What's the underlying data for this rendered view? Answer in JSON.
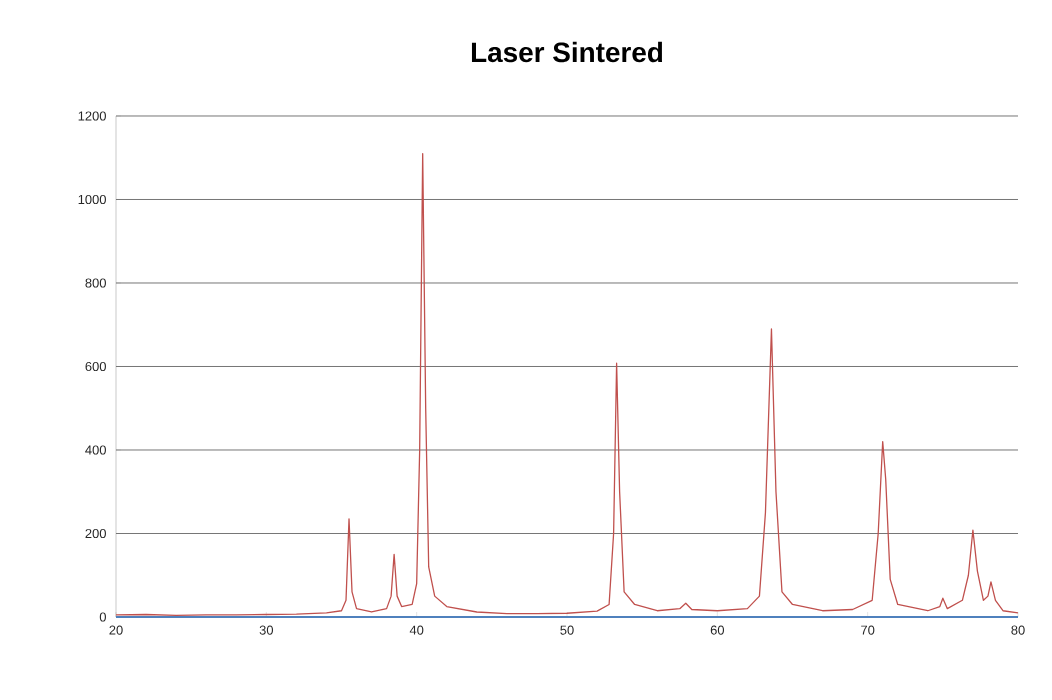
{
  "chart_data": {
    "type": "line",
    "title": "Laser Sintered",
    "series": [
      {
        "color": "#c0504d",
        "x": [
          20,
          22,
          24,
          26,
          28,
          30,
          32,
          34,
          35,
          35.3,
          35.5,
          35.7,
          36,
          37,
          38,
          38.3,
          38.5,
          38.7,
          39,
          39.7,
          40.0,
          40.2,
          40.4,
          40.6,
          40.8,
          41.2,
          42,
          44,
          46,
          48,
          50,
          52,
          52.8,
          53.1,
          53.3,
          53.5,
          53.8,
          54.5,
          56,
          57.5,
          57.9,
          58.3,
          60,
          62,
          62.8,
          63.2,
          63.6,
          63.9,
          64.3,
          65,
          67,
          69,
          70.3,
          70.7,
          71.0,
          71.2,
          71.5,
          72,
          74,
          74.8,
          75.0,
          75.3,
          76.3,
          76.7,
          77.0,
          77.3,
          77.7,
          78.0,
          78.2,
          78.5,
          79,
          80
        ],
        "values": [
          5,
          6,
          4,
          5,
          5,
          6,
          7,
          10,
          15,
          40,
          235,
          60,
          20,
          12,
          20,
          50,
          150,
          50,
          25,
          30,
          80,
          400,
          1110,
          500,
          120,
          50,
          25,
          12,
          8,
          8,
          9,
          14,
          30,
          200,
          608,
          300,
          60,
          30,
          15,
          20,
          33,
          18,
          15,
          20,
          50,
          250,
          690,
          300,
          60,
          30,
          15,
          18,
          40,
          200,
          420,
          330,
          90,
          30,
          15,
          25,
          45,
          20,
          40,
          100,
          208,
          110,
          40,
          50,
          84,
          40,
          15,
          10
        ]
      },
      {
        "color": "#4f81bd",
        "x": [
          20,
          80
        ],
        "values": [
          0,
          0
        ]
      }
    ],
    "xlim": [
      20,
      80
    ],
    "xticks": [
      20,
      30,
      40,
      50,
      60,
      70,
      80
    ],
    "ylim": [
      0,
      1200
    ],
    "yticks": [
      0,
      200,
      400,
      600,
      800,
      1000,
      1200
    ],
    "grid": "y",
    "marker": "none",
    "line_style": "solid"
  }
}
